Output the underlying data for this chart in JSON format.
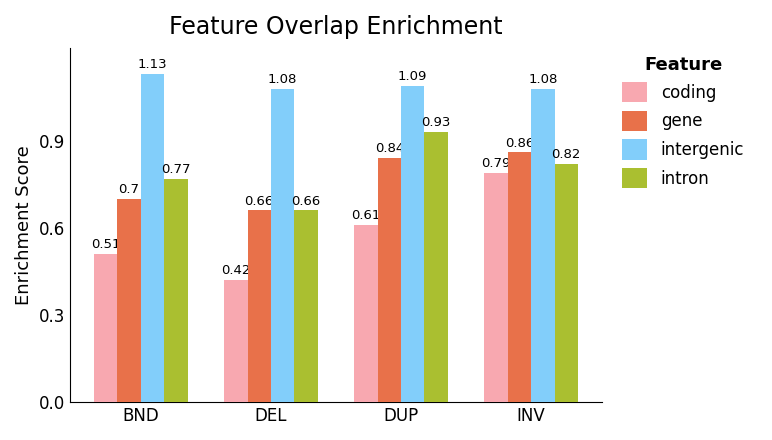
{
  "title": "Feature Overlap Enrichment",
  "ylabel": "Enrichment Score",
  "categories": [
    "BND",
    "DEL",
    "DUP",
    "INV"
  ],
  "features": [
    "coding",
    "gene",
    "intergenic",
    "intron"
  ],
  "values": {
    "coding": [
      0.51,
      0.42,
      0.61,
      0.79
    ],
    "gene": [
      0.7,
      0.66,
      0.84,
      0.86
    ],
    "intergenic": [
      1.13,
      1.08,
      1.09,
      1.08
    ],
    "intron": [
      0.77,
      0.66,
      0.93,
      0.82
    ]
  },
  "colors": {
    "coding": "#F8A8B0",
    "gene": "#E8714A",
    "intergenic": "#82CEFA",
    "intron": "#AABF30"
  },
  "ylim": [
    0,
    1.22
  ],
  "yticks": [
    0.0,
    0.3,
    0.6,
    0.9
  ],
  "bar_width": 0.18,
  "title_fontsize": 17,
  "axis_label_fontsize": 13,
  "tick_fontsize": 12,
  "legend_title": "Feature",
  "legend_title_fontsize": 13,
  "legend_fontsize": 12,
  "annotation_fontsize": 9.5,
  "background_color": "#FFFFFF"
}
